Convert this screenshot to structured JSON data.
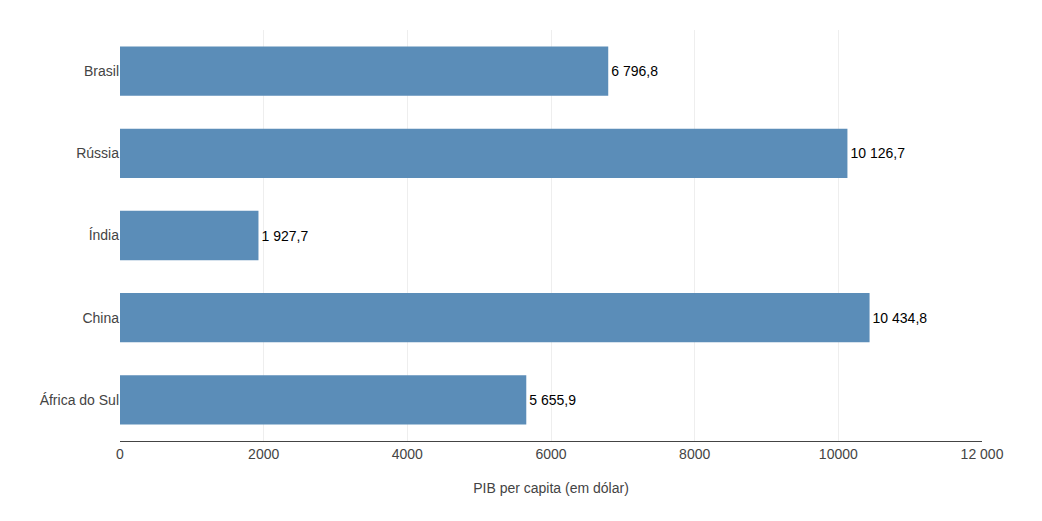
{
  "chart_data": {
    "type": "bar",
    "orientation": "horizontal",
    "categories": [
      "Brasil",
      "Rússia",
      "Índia",
      "China",
      "África do Sul"
    ],
    "values": [
      6796.8,
      10126.7,
      1927.7,
      10434.8,
      5655.9
    ],
    "value_labels": [
      "6 796,8",
      "10 126,7",
      "1 927,7",
      "10 434,8",
      "5 655,9"
    ],
    "data_labels": true,
    "color": "#5b8db8",
    "xlabel": "PIB per capita (em dólar)",
    "xlim": [
      0,
      12000
    ],
    "xticks": [
      0,
      2000,
      4000,
      6000,
      8000,
      10000,
      {
        "value": 12000,
        "label": "12 000"
      }
    ],
    "grid": true
  }
}
